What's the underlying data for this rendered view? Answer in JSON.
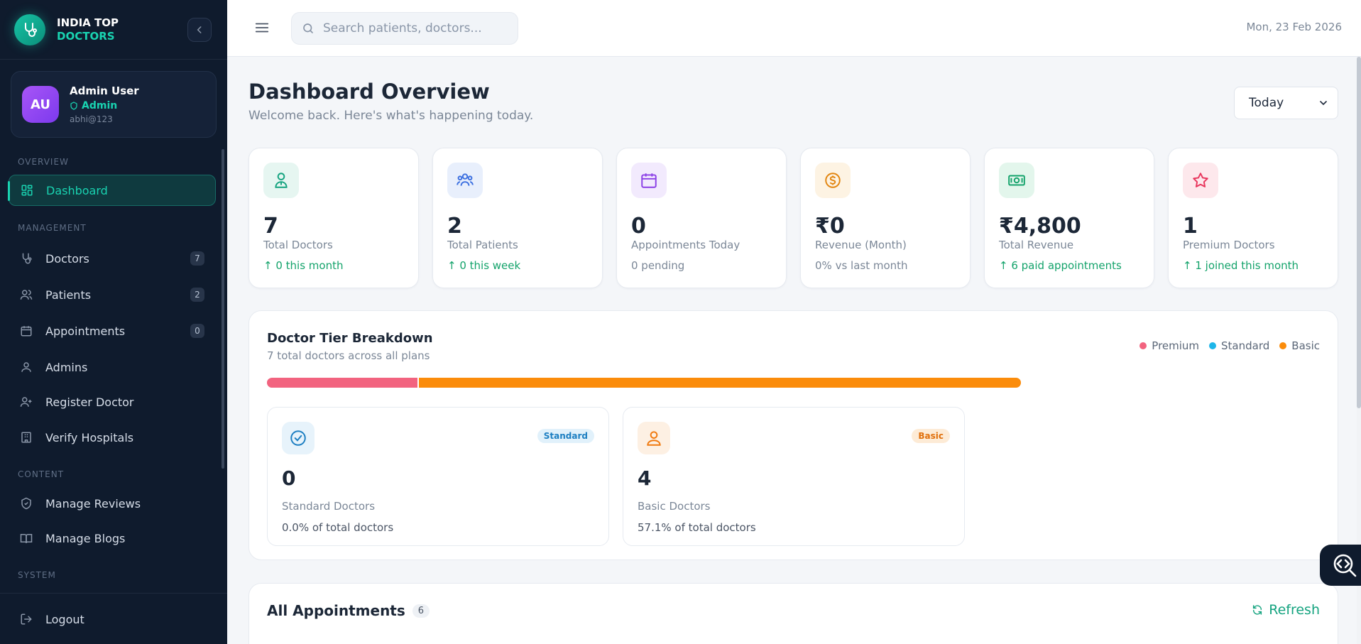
{
  "brand": {
    "line1": "INDIA TOP",
    "line2": "DOCTORS"
  },
  "user": {
    "initials": "AU",
    "name": "Admin User",
    "role": "Admin",
    "email": "abhi@123"
  },
  "nav": {
    "sections": {
      "overview": "OVERVIEW",
      "management": "MANAGEMENT",
      "content": "CONTENT",
      "system": "SYSTEM"
    },
    "items": {
      "dashboard": {
        "label": "Dashboard",
        "icon": "grid-icon"
      },
      "doctors": {
        "label": "Doctors",
        "icon": "stethoscope-icon",
        "badge": "7"
      },
      "patients": {
        "label": "Patients",
        "icon": "users-icon",
        "badge": "2"
      },
      "appointments": {
        "label": "Appointments",
        "icon": "calendar-icon",
        "badge": "0"
      },
      "admins": {
        "label": "Admins",
        "icon": "user-icon"
      },
      "register_doctor": {
        "label": "Register Doctor",
        "icon": "user-plus-icon"
      },
      "verify_hospitals": {
        "label": "Verify Hospitals",
        "icon": "building-icon"
      },
      "manage_reviews": {
        "label": "Manage Reviews",
        "icon": "shield-check-icon"
      },
      "manage_blogs": {
        "label": "Manage Blogs",
        "icon": "book-icon"
      },
      "logout": {
        "label": "Logout",
        "icon": "logout-icon"
      }
    }
  },
  "topbar": {
    "search_placeholder": "Search patients, doctors...",
    "date": "Mon, 23 Feb 2026"
  },
  "page": {
    "title": "Dashboard Overview",
    "subtitle": "Welcome back. Here's what's happening today.",
    "range": "Today"
  },
  "stats": [
    {
      "value": "7",
      "label": "Total Doctors",
      "trend": "0 this month",
      "icon": "doctor-icon",
      "color": "#14a37f"
    },
    {
      "value": "2",
      "label": "Total Patients",
      "trend": "0 this week",
      "icon": "users-icon",
      "color": "#3b6fe0"
    },
    {
      "value": "0",
      "label": "Appointments Today",
      "trend": "0 pending",
      "icon": "calendar-icon",
      "color": "#8b3fe6"
    },
    {
      "value": "₹0",
      "label": "Revenue (Month)",
      "trend": "0% vs last month",
      "icon": "dollar-icon",
      "color": "#e2850f"
    },
    {
      "value": "₹4,800",
      "label": "Total Revenue",
      "trend": "6 paid appointments",
      "icon": "cash-icon",
      "color": "#14a36b"
    },
    {
      "value": "1",
      "label": "Premium Doctors",
      "trend": "1 joined this month",
      "icon": "star-icon",
      "color": "#e8365d"
    }
  ],
  "tiers": {
    "title": "Doctor Tier Breakdown",
    "subtitle": "7 total doctors across all plans",
    "legend": [
      {
        "name": "Premium",
        "color": "#f2637f"
      },
      {
        "name": "Standard",
        "color": "#1eb6e9"
      },
      {
        "name": "Basic",
        "color": "#fb8c0b"
      }
    ],
    "bar": [
      {
        "name": "Premium",
        "fraction": 0.2,
        "color": "#f2637f"
      },
      {
        "name": "Basic",
        "fraction": 0.8,
        "color": "#fb8c0b"
      }
    ],
    "cards": [
      {
        "badge": "Standard",
        "count": "0",
        "label": "Standard Doctors",
        "pct": "0.0% of total doctors",
        "icon": "check-circle-icon",
        "color": "#1d7fc2"
      },
      {
        "badge": "Basic",
        "count": "4",
        "label": "Basic Doctors",
        "pct": "57.1% of total doctors",
        "icon": "person-icon",
        "color": "#f0780d"
      }
    ]
  },
  "appointments": {
    "title": "All Appointments",
    "count": "6",
    "refresh": "Refresh"
  }
}
